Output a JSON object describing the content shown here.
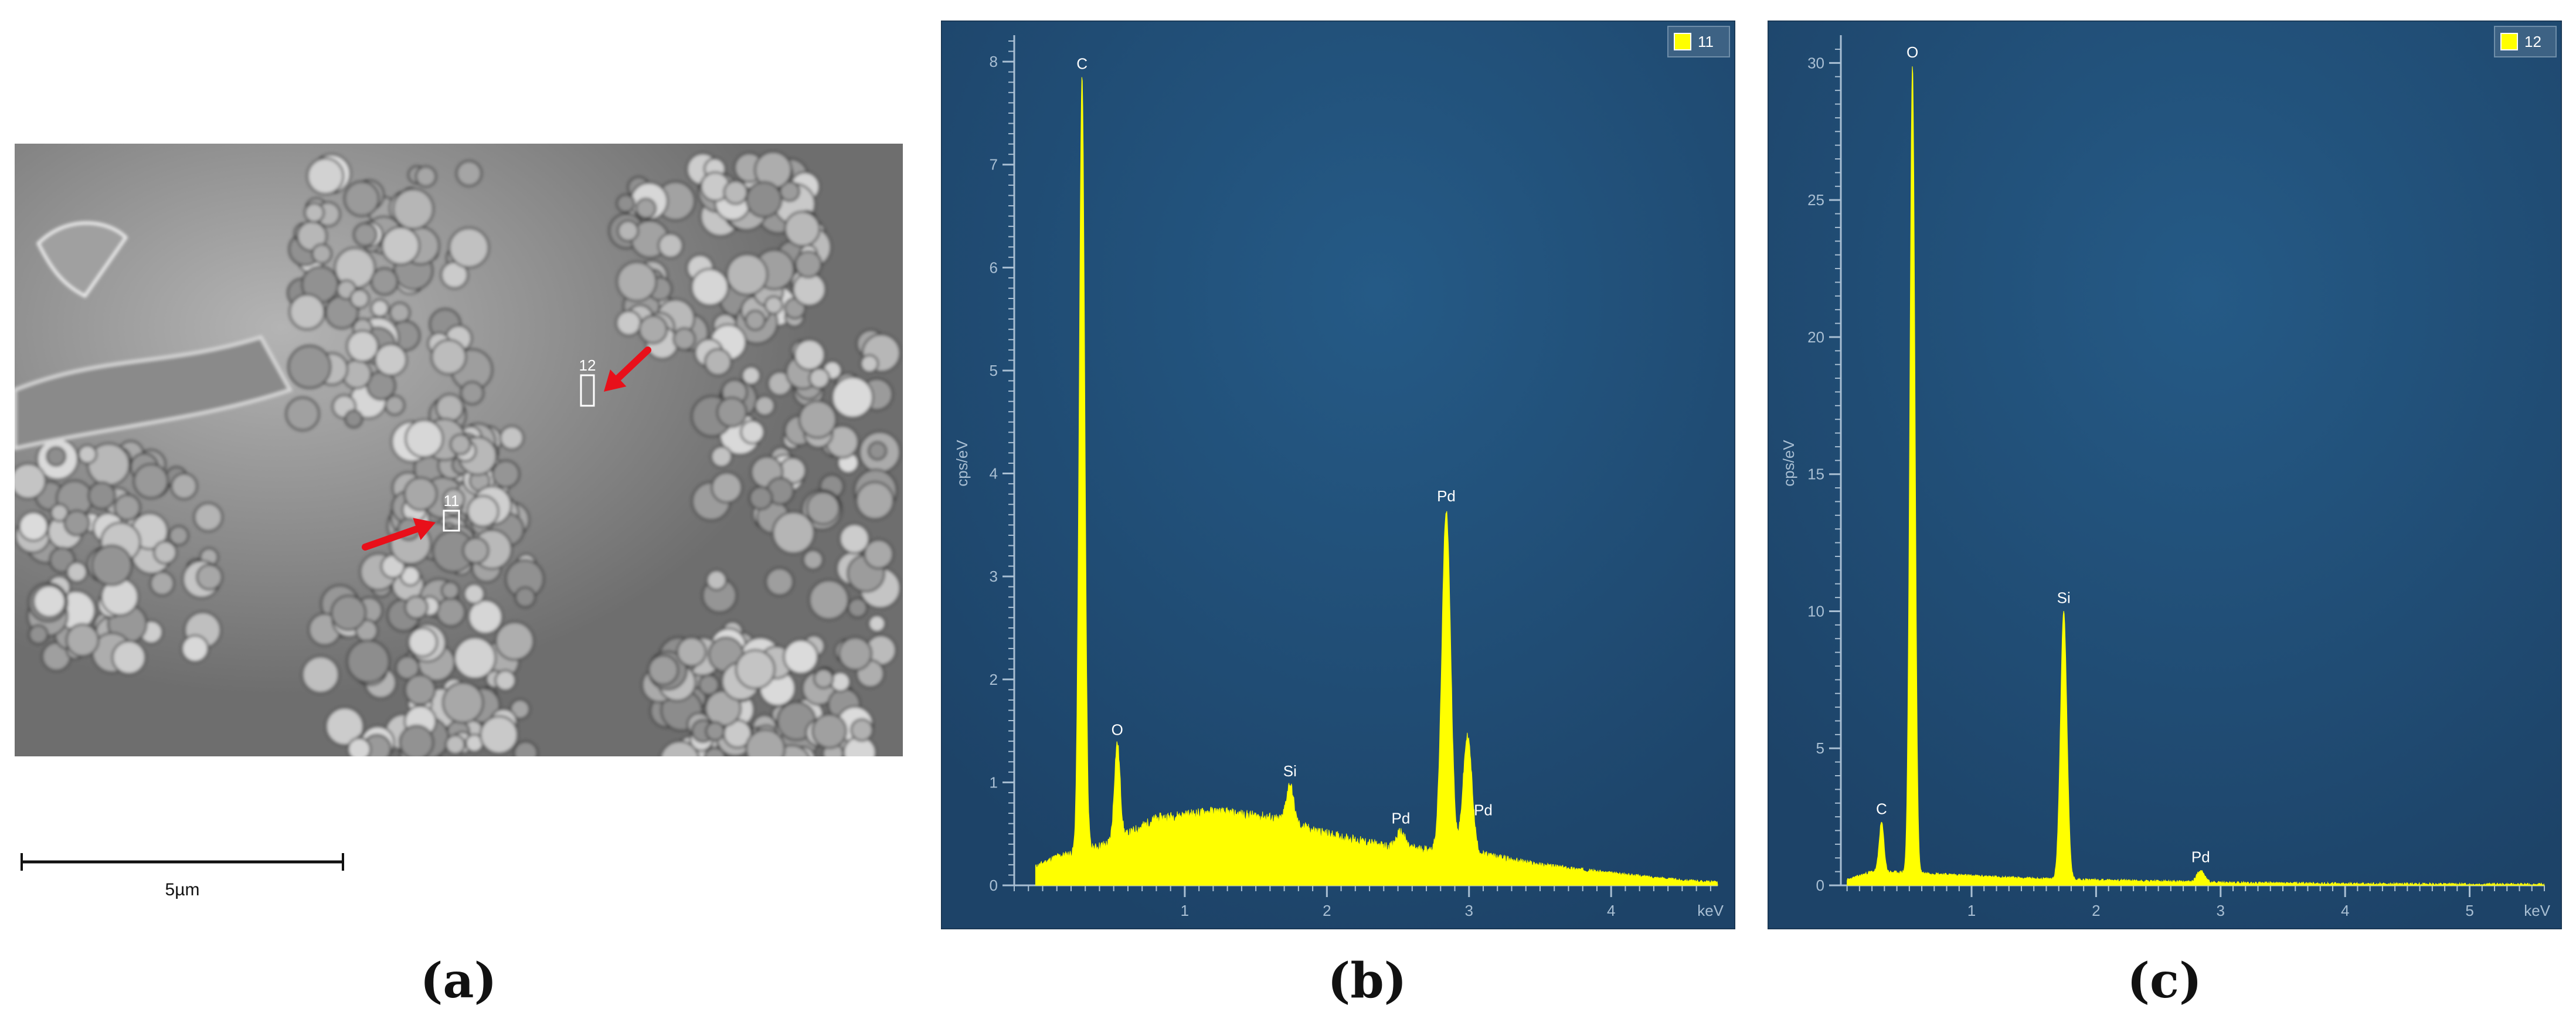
{
  "captions": [
    "(a)",
    "(b)",
    "(c)"
  ],
  "sem": {
    "scale_label": "5µm",
    "regions": [
      {
        "label": "12"
      },
      {
        "label": "11"
      }
    ],
    "marker_color": "#e8101a"
  },
  "colors": {
    "plot_bg": "#1d4368",
    "plot_bg_light": "#255a86",
    "spectrum": "#ffff00",
    "axis": "#a9bfd3",
    "legend_bg": "#3d6284"
  },
  "chart_data": [
    {
      "type": "area",
      "panel": "(b)",
      "legend": [
        "11"
      ],
      "ylabel": "cps/eV",
      "xlabel": "keV",
      "xlim": [
        -0.2,
        4.75
      ],
      "ylim": [
        0,
        8.2
      ],
      "xticks": [
        1,
        2,
        3,
        4
      ],
      "yticks": [
        0,
        1,
        2,
        3,
        4,
        5,
        6,
        7,
        8
      ],
      "background": [
        [
          -0.1,
          0.15
        ],
        [
          0.1,
          0.28
        ],
        [
          0.3,
          0.34
        ],
        [
          0.5,
          0.42
        ],
        [
          0.8,
          0.65
        ],
        [
          1.2,
          0.72
        ],
        [
          1.6,
          0.66
        ],
        [
          2.0,
          0.5
        ],
        [
          2.4,
          0.38
        ],
        [
          2.8,
          0.34
        ],
        [
          3.1,
          0.3
        ],
        [
          3.5,
          0.2
        ],
        [
          4.0,
          0.12
        ],
        [
          4.5,
          0.05
        ],
        [
          4.75,
          0.03
        ]
      ],
      "peaks": [
        {
          "element": "C",
          "energy": 0.277,
          "height": 7.85
        },
        {
          "element": "O",
          "energy": 0.525,
          "height": 1.38
        },
        {
          "element": "Si",
          "energy": 1.74,
          "height": 0.98
        },
        {
          "element": "Pd",
          "energy": 2.52,
          "height": 0.52
        },
        {
          "element": "Pd",
          "energy": 2.84,
          "height": 3.65
        },
        {
          "element": "Pd",
          "energy": 2.99,
          "height": 1.45
        }
      ],
      "labeled_peaks": [
        {
          "label": "C",
          "energy": 0.277,
          "height": 7.85
        },
        {
          "label": "O",
          "energy": 0.525,
          "height": 1.38
        },
        {
          "label": "Si",
          "energy": 1.74,
          "height": 0.98
        },
        {
          "label": "Pd",
          "energy": 2.52,
          "height": 0.52
        },
        {
          "label": "Pd",
          "energy": 2.84,
          "height": 3.65
        },
        {
          "label": "Pd",
          "energy": 3.1,
          "height": 0.6
        }
      ]
    },
    {
      "type": "area",
      "panel": "(c)",
      "legend": [
        "12"
      ],
      "ylabel": "cps/eV",
      "xlabel": "keV",
      "xlim": [
        -0.05,
        5.6
      ],
      "ylim": [
        0,
        30.8
      ],
      "xticks": [
        1,
        2,
        3,
        4,
        5
      ],
      "yticks": [
        0,
        5,
        10,
        15,
        20,
        25,
        30
      ],
      "background": [
        [
          0.0,
          0.2
        ],
        [
          0.2,
          0.5
        ],
        [
          0.6,
          0.45
        ],
        [
          1.0,
          0.35
        ],
        [
          1.5,
          0.25
        ],
        [
          2.0,
          0.2
        ],
        [
          2.5,
          0.15
        ],
        [
          3.0,
          0.1
        ],
        [
          4.0,
          0.06
        ],
        [
          5.0,
          0.04
        ],
        [
          5.6,
          0.03
        ]
      ],
      "peaks": [
        {
          "element": "C",
          "energy": 0.277,
          "height": 2.3
        },
        {
          "element": "O",
          "energy": 0.525,
          "height": 29.9
        },
        {
          "element": "Si",
          "energy": 1.74,
          "height": 10.0
        },
        {
          "element": "Pd",
          "energy": 2.84,
          "height": 0.55
        }
      ],
      "labeled_peaks": [
        {
          "label": "C",
          "energy": 0.277,
          "height": 2.3
        },
        {
          "label": "O",
          "energy": 0.525,
          "height": 29.9
        },
        {
          "label": "Si",
          "energy": 1.74,
          "height": 10.0
        },
        {
          "label": "Pd",
          "energy": 2.84,
          "height": 0.55
        }
      ]
    }
  ]
}
